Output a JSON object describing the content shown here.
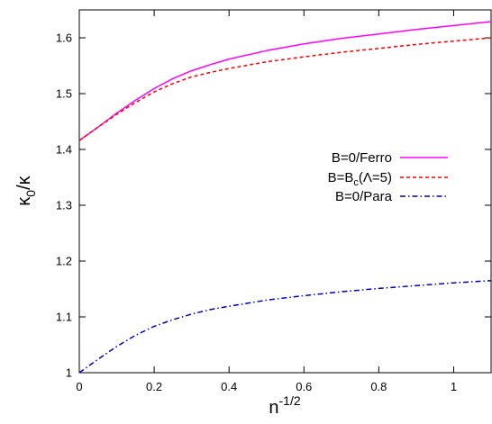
{
  "chart_data": {
    "type": "line",
    "title": "",
    "xlabel": {
      "base": "n",
      "sup": "-1/2"
    },
    "ylabel": {
      "base": "κ",
      "sub": "0",
      "tail": "/κ"
    },
    "xlim": [
      0,
      1.1
    ],
    "ylim": [
      1.0,
      1.65
    ],
    "x_ticks": [
      0,
      0.2,
      0.4,
      0.6,
      0.8,
      1
    ],
    "x_tick_labels": [
      "0",
      "0.2",
      "0.4",
      "0.6",
      "0.8",
      "1"
    ],
    "y_ticks": [
      1.0,
      1.1,
      1.2,
      1.3,
      1.4,
      1.5,
      1.6
    ],
    "y_tick_labels": [
      "1",
      "1.1",
      "1.2",
      "1.3",
      "1.4",
      "1.5",
      "1.6"
    ],
    "grid": false,
    "legend_position": "right",
    "series": [
      {
        "name": "B=0/Ferro",
        "color": "#ff00ff",
        "dash": "solid",
        "x": [
          0,
          0.05,
          0.1,
          0.15,
          0.2,
          0.25,
          0.3,
          0.35,
          0.4,
          0.5,
          0.6,
          0.7,
          0.8,
          0.9,
          1.0,
          1.1
        ],
        "y": [
          1.416,
          1.44,
          1.465,
          1.488,
          1.509,
          1.527,
          1.541,
          1.552,
          1.562,
          1.577,
          1.589,
          1.599,
          1.607,
          1.615,
          1.622,
          1.629
        ]
      },
      {
        "name": "B=B_c(Λ=5)",
        "legend_parts": {
          "pre": "B=B",
          "sub": "c",
          "post": "(Λ=5)"
        },
        "color": "#ff0000",
        "dash": "dashed",
        "x": [
          0,
          0.05,
          0.1,
          0.15,
          0.2,
          0.25,
          0.3,
          0.35,
          0.4,
          0.5,
          0.6,
          0.7,
          0.8,
          0.9,
          1.0,
          1.1
        ],
        "y": [
          1.416,
          1.44,
          1.463,
          1.484,
          1.503,
          1.518,
          1.53,
          1.538,
          1.545,
          1.557,
          1.566,
          1.574,
          1.581,
          1.588,
          1.594,
          1.6
        ]
      },
      {
        "name": "B=0/Para",
        "color": "#0000cc",
        "dash": "dashdot",
        "x": [
          0,
          0.05,
          0.1,
          0.15,
          0.2,
          0.25,
          0.3,
          0.35,
          0.4,
          0.5,
          0.6,
          0.7,
          0.8,
          0.9,
          1.0,
          1.1
        ],
        "y": [
          1.0,
          1.024,
          1.047,
          1.067,
          1.083,
          1.095,
          1.105,
          1.113,
          1.119,
          1.13,
          1.138,
          1.145,
          1.151,
          1.156,
          1.161,
          1.165
        ]
      }
    ]
  }
}
